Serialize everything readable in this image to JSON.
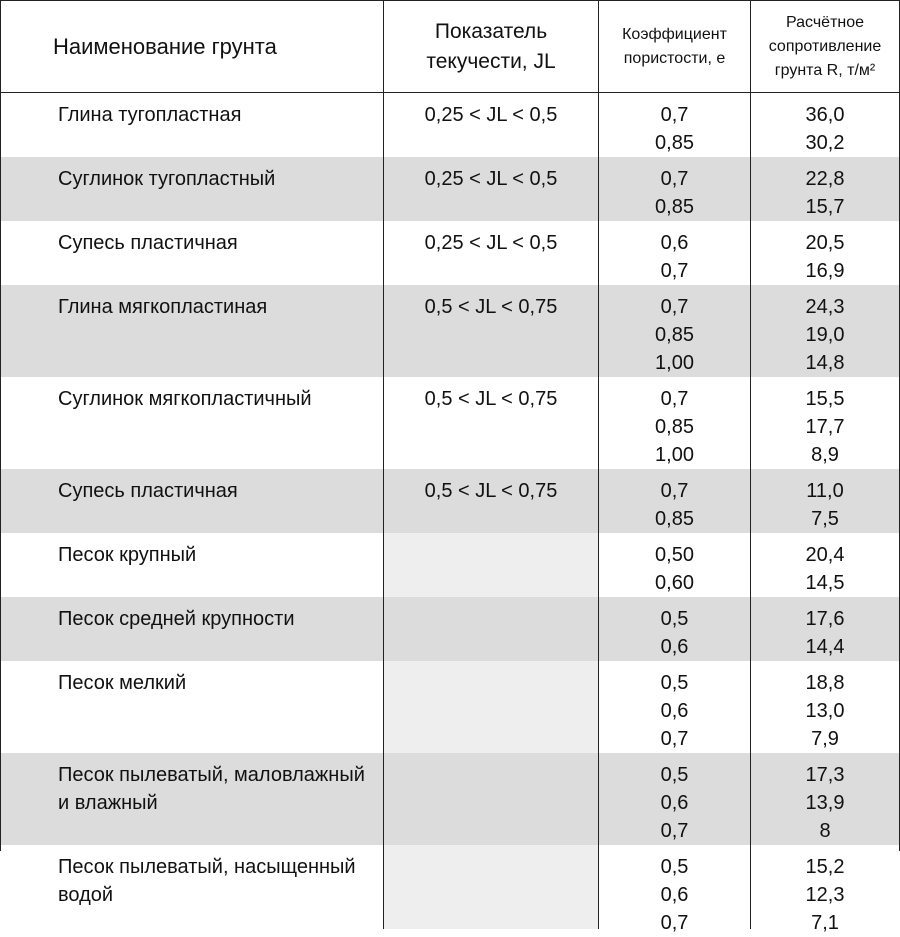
{
  "header": [
    "Наименование грунта",
    "Показатель текучести, JL",
    "Коэффициент пористости, е",
    "Расчётное сопротивление грунта R, т/м²"
  ],
  "rows": [
    {
      "name": "Глина тугопластная",
      "jl": "0,25 < JL < 0,5",
      "e": [
        "0,7",
        "0,85"
      ],
      "r": [
        "36,0",
        "30,2"
      ]
    },
    {
      "name": "Суглинок тугопластный",
      "jl": "0,25 < JL < 0,5",
      "e": [
        "0,7",
        "0,85"
      ],
      "r": [
        "22,8",
        "15,7"
      ]
    },
    {
      "name": "Супесь пластичная",
      "jl": "0,25 < JL < 0,5",
      "e": [
        "0,6",
        "0,7"
      ],
      "r": [
        "20,5",
        "16,9"
      ]
    },
    {
      "name": "Глина мягкопластиная",
      "jl": "0,5 < JL < 0,75",
      "e": [
        "0,7",
        "0,85",
        "1,00"
      ],
      "r": [
        "24,3",
        "19,0",
        "14,8"
      ]
    },
    {
      "name": "Суглинок мягкопластичный",
      "jl": "0,5 < JL < 0,75",
      "e": [
        "0,7",
        "0,85",
        "1,00"
      ],
      "r": [
        "15,5",
        "17,7",
        "8,9"
      ]
    },
    {
      "name": "Супесь пластичная",
      "jl": "0,5 < JL < 0,75",
      "e": [
        "0,7",
        "0,85"
      ],
      "r": [
        "11,0",
        "7,5"
      ]
    },
    {
      "name": "Песок крупный",
      "e": [
        "0,50",
        "0,60"
      ],
      "r": [
        "20,4",
        "14,5"
      ]
    },
    {
      "name": "Песок средней крупности",
      "e": [
        "0,5",
        "0,6"
      ],
      "r": [
        "17,6",
        "14,4"
      ]
    },
    {
      "name": "Песок мелкий",
      "e": [
        "0,5",
        "0,6",
        "0,7"
      ],
      "r": [
        "18,8",
        "13,0",
        "7,9"
      ]
    },
    {
      "name": "Песок пылеватый, маловлажный и влажный",
      "e": [
        "0,5",
        "0,6",
        "0,7"
      ],
      "r": [
        "17,3",
        "13,9",
        "8"
      ]
    },
    {
      "name": "Песок пылеватый, насыщенный водой",
      "e": [
        "0,5",
        "0,6",
        "0,7"
      ],
      "r": [
        "15,2",
        "12,3",
        "7,1"
      ]
    }
  ]
}
